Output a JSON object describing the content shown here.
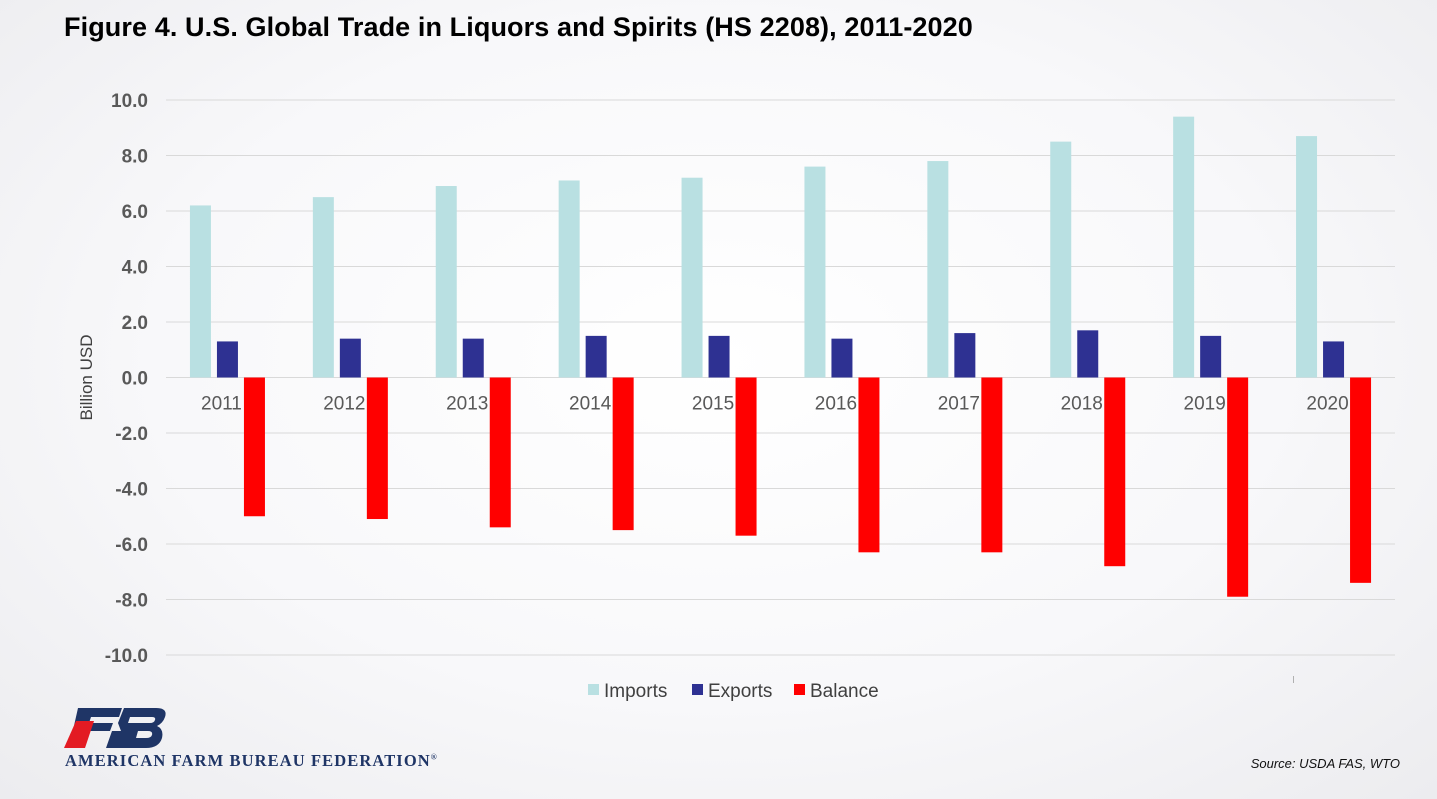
{
  "title": "Figure 4. U.S. Global Trade in Liquors and Spirits (HS 2208), 2011-2020",
  "source": "Source: USDA FAS, WTO",
  "org_name": "AMERICAN FARM BUREAU FEDERATION",
  "org_mark": "®",
  "logo_icon": "fb-logo-icon",
  "colors": {
    "imports": "#b9e0e2",
    "exports": "#2e3192",
    "balance": "#ff0000",
    "grid": "#d9d9d9",
    "tick_text": "#595959"
  },
  "chart_data": {
    "type": "bar",
    "title": "",
    "xlabel": "",
    "ylabel": "Billion USD",
    "ylim": [
      -10,
      10
    ],
    "yticks": [
      "10.0",
      "8.0",
      "6.0",
      "4.0",
      "2.0",
      "0.0",
      "-2.0",
      "-4.0",
      "-6.0",
      "-8.0",
      "-10.0"
    ],
    "categories": [
      "2011",
      "2012",
      "2013",
      "2014",
      "2015",
      "2016",
      "2017",
      "2018",
      "2019",
      "2020"
    ],
    "series": [
      {
        "name": "Imports",
        "values": [
          6.2,
          6.5,
          6.9,
          7.1,
          7.2,
          7.6,
          7.8,
          8.5,
          9.4,
          8.7
        ]
      },
      {
        "name": "Exports",
        "values": [
          1.3,
          1.4,
          1.4,
          1.5,
          1.5,
          1.4,
          1.6,
          1.7,
          1.5,
          1.3
        ]
      },
      {
        "name": "Balance",
        "values": [
          -5.0,
          -5.1,
          -5.4,
          -5.5,
          -5.7,
          -6.3,
          -6.3,
          -6.8,
          -7.9,
          -7.4
        ]
      }
    ],
    "grid": true,
    "legend_position": "bottom"
  }
}
